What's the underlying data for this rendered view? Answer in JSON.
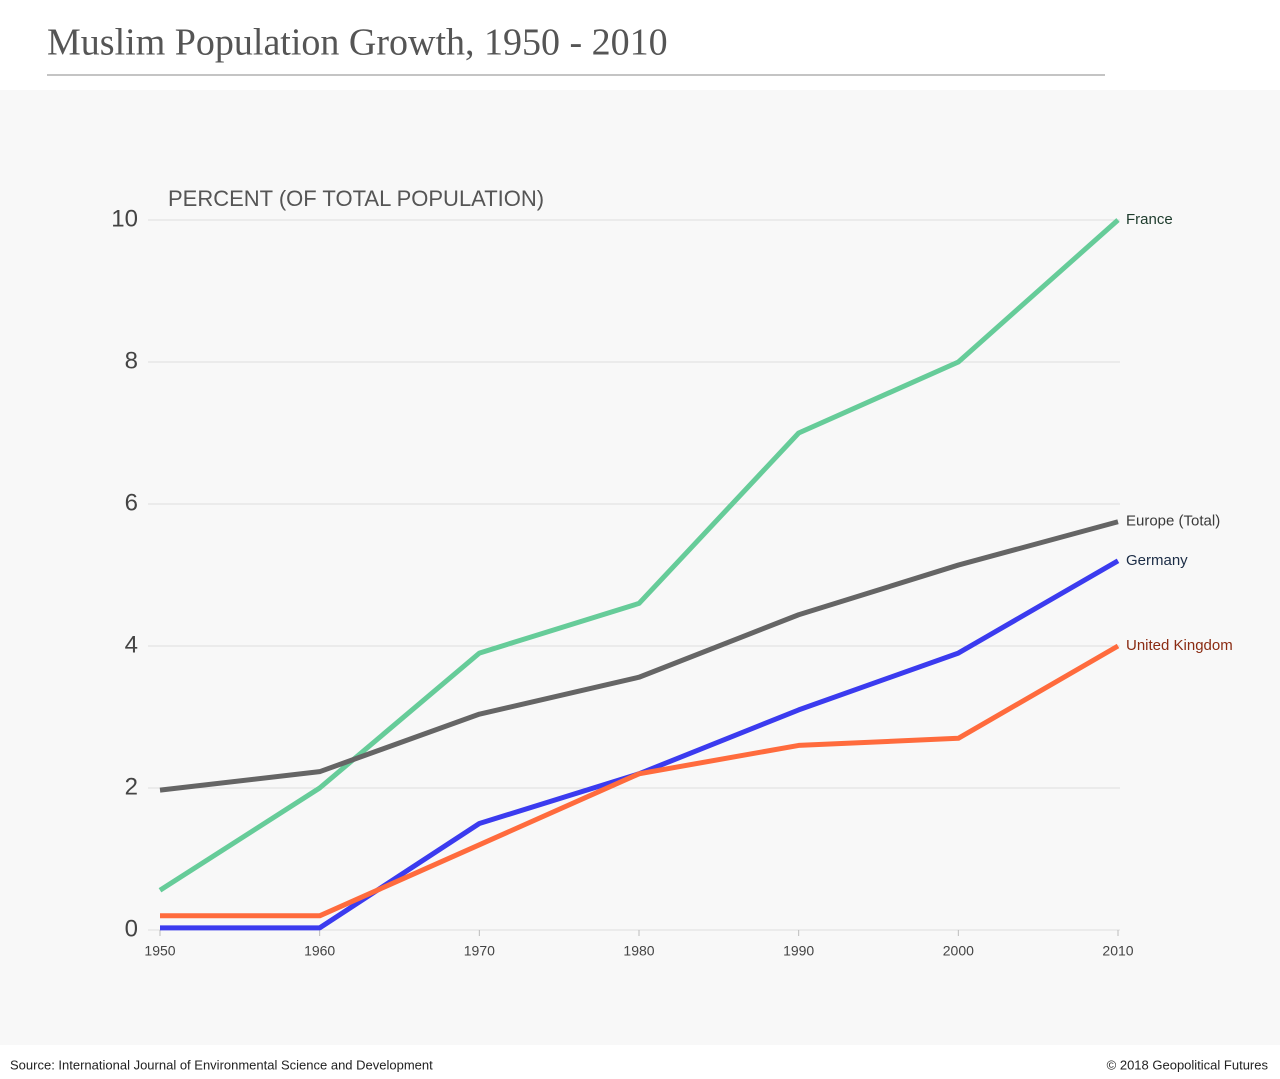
{
  "chart_data": {
    "type": "line",
    "title": "Muslim Population Growth, 1950 - 2010",
    "y_label": "PERCENT (OF TOTAL POPULATION)",
    "source": "Source: International Journal of Environmental Science and Development",
    "credit": "© 2018 Geopolitical Futures",
    "x": [
      1950,
      1960,
      1970,
      1980,
      1990,
      2000,
      2010
    ],
    "xlim": [
      1950,
      2010
    ],
    "xticks": [
      1950,
      1960,
      1970,
      1980,
      1990,
      2000,
      2010
    ],
    "ylim": [
      0,
      10
    ],
    "yticks": [
      0,
      2,
      4,
      6,
      8,
      10
    ],
    "grid": true,
    "series": [
      {
        "name": "France",
        "color": "#66cc99",
        "label_color": "#1d3b2c",
        "values": [
          0.56,
          2.0,
          3.9,
          4.6,
          7.0,
          8.0,
          10.0
        ]
      },
      {
        "name": "Europe (Total)",
        "color": "#656565",
        "label_color": "#3a3a3a",
        "values": [
          1.97,
          2.23,
          3.04,
          3.56,
          4.44,
          5.14,
          5.75
        ]
      },
      {
        "name": "Germany",
        "color": "#3b3bef",
        "label_color": "#1b2c45",
        "values": [
          0.03,
          0.03,
          1.5,
          2.2,
          3.1,
          3.9,
          5.2
        ]
      },
      {
        "name": "United Kingdom",
        "color": "#ff6b3d",
        "label_color": "#8a2b12",
        "values": [
          0.2,
          0.2,
          1.2,
          2.2,
          2.6,
          2.7,
          4.0
        ]
      }
    ]
  }
}
